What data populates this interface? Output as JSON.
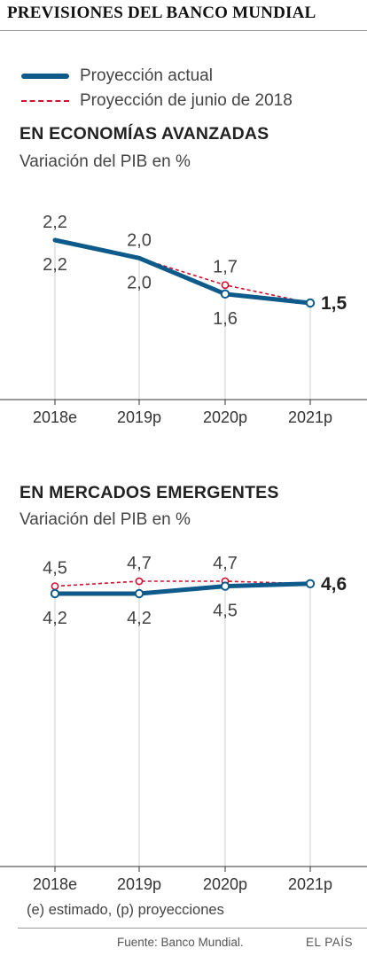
{
  "title": "PREVISIONES DEL BANCO MUNDIAL",
  "legend": {
    "current": "Proyección actual",
    "june": "Proyección de junio  de 2018"
  },
  "colors": {
    "current": "#0e5a8a",
    "june": "#d0102c"
  },
  "chart_data": [
    {
      "type": "line",
      "title": "EN ECONOMÍAS AVANZADAS",
      "subtitle": "Variación del PIB en %",
      "categories": [
        "2018e",
        "2019p",
        "2020p",
        "2021p"
      ],
      "series": [
        {
          "name": "Proyección actual",
          "values": [
            2.2,
            2.0,
            1.6,
            1.5
          ],
          "labels": [
            "2,2",
            "2,0",
            "1,6",
            "1,5"
          ]
        },
        {
          "name": "Proyección de junio  de 2018",
          "values": [
            2.2,
            2.0,
            1.7,
            1.5
          ],
          "labels": [
            "2,2",
            "2,0",
            "1,7",
            "1,5"
          ]
        }
      ]
    },
    {
      "type": "line",
      "title": "EN MERCADOS EMERGENTES",
      "subtitle": "Variación del PIB en %",
      "categories": [
        "2018e",
        "2019p",
        "2020p",
        "2021p"
      ],
      "series": [
        {
          "name": "Proyección actual",
          "values": [
            4.2,
            4.2,
            4.5,
            4.6
          ],
          "labels": [
            "4,2",
            "4,2",
            "4,5",
            "4,6"
          ]
        },
        {
          "name": "Proyección de junio  de 2018",
          "values": [
            4.5,
            4.7,
            4.7,
            4.6
          ],
          "labels": [
            "4,5",
            "4,7",
            "4,7",
            "4,6"
          ]
        }
      ]
    }
  ],
  "footnote": "(e) estimado, (p) proyecciones",
  "source": "Fuente: Banco Mundial.",
  "brand": "EL PAÍS"
}
